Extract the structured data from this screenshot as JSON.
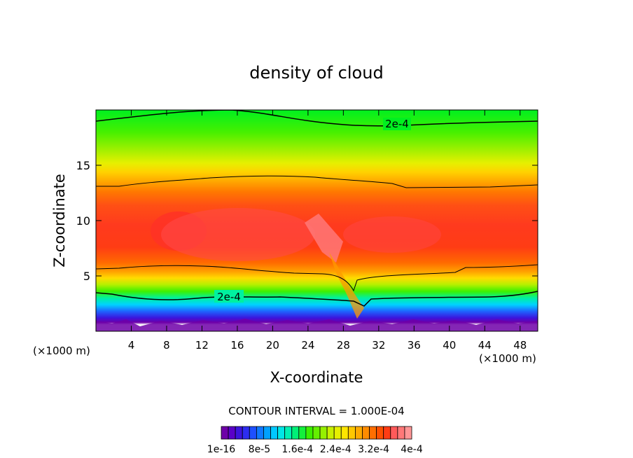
{
  "chart_data": {
    "type": "heatmap",
    "title": "density of cloud",
    "xlabel": "X-coordinate",
    "ylabel": "Z-coordinate",
    "x_unit": "(×1000 m)",
    "y_unit": "(×1000 m)",
    "xlim": [
      0,
      50
    ],
    "ylim": [
      0,
      20
    ],
    "x_ticks": [
      4,
      8,
      12,
      16,
      20,
      24,
      28,
      32,
      36,
      40,
      44,
      48
    ],
    "y_ticks": [
      5,
      10,
      15
    ],
    "contour_interval_text": "CONTOUR INTERVAL = 1.000E-04",
    "contour_labels": [
      {
        "text": "2e-4",
        "x": 34.5,
        "z": 18.5
      },
      {
        "text": "2e-4",
        "x": 15.5,
        "z": 2.9
      }
    ],
    "colorbar": {
      "colors": [
        "#6e00a8",
        "#5a00c8",
        "#3c14dc",
        "#2d2df0",
        "#1e50ff",
        "#0f78ff",
        "#00a0ff",
        "#00c8ff",
        "#00e6e6",
        "#00f0b4",
        "#00f078",
        "#14f03c",
        "#3cf000",
        "#64f000",
        "#96f000",
        "#c8f000",
        "#e6f000",
        "#ffe600",
        "#ffc800",
        "#ffaa00",
        "#ff8c00",
        "#ff6e00",
        "#ff5000",
        "#ff3c14",
        "#ff5a5a",
        "#ff7878",
        "#ff9696"
      ],
      "labels": [
        "1e-16",
        "8e-5",
        "1.6e-4",
        "2.4e-4",
        "3.2e-4",
        "4e-4"
      ]
    }
  }
}
